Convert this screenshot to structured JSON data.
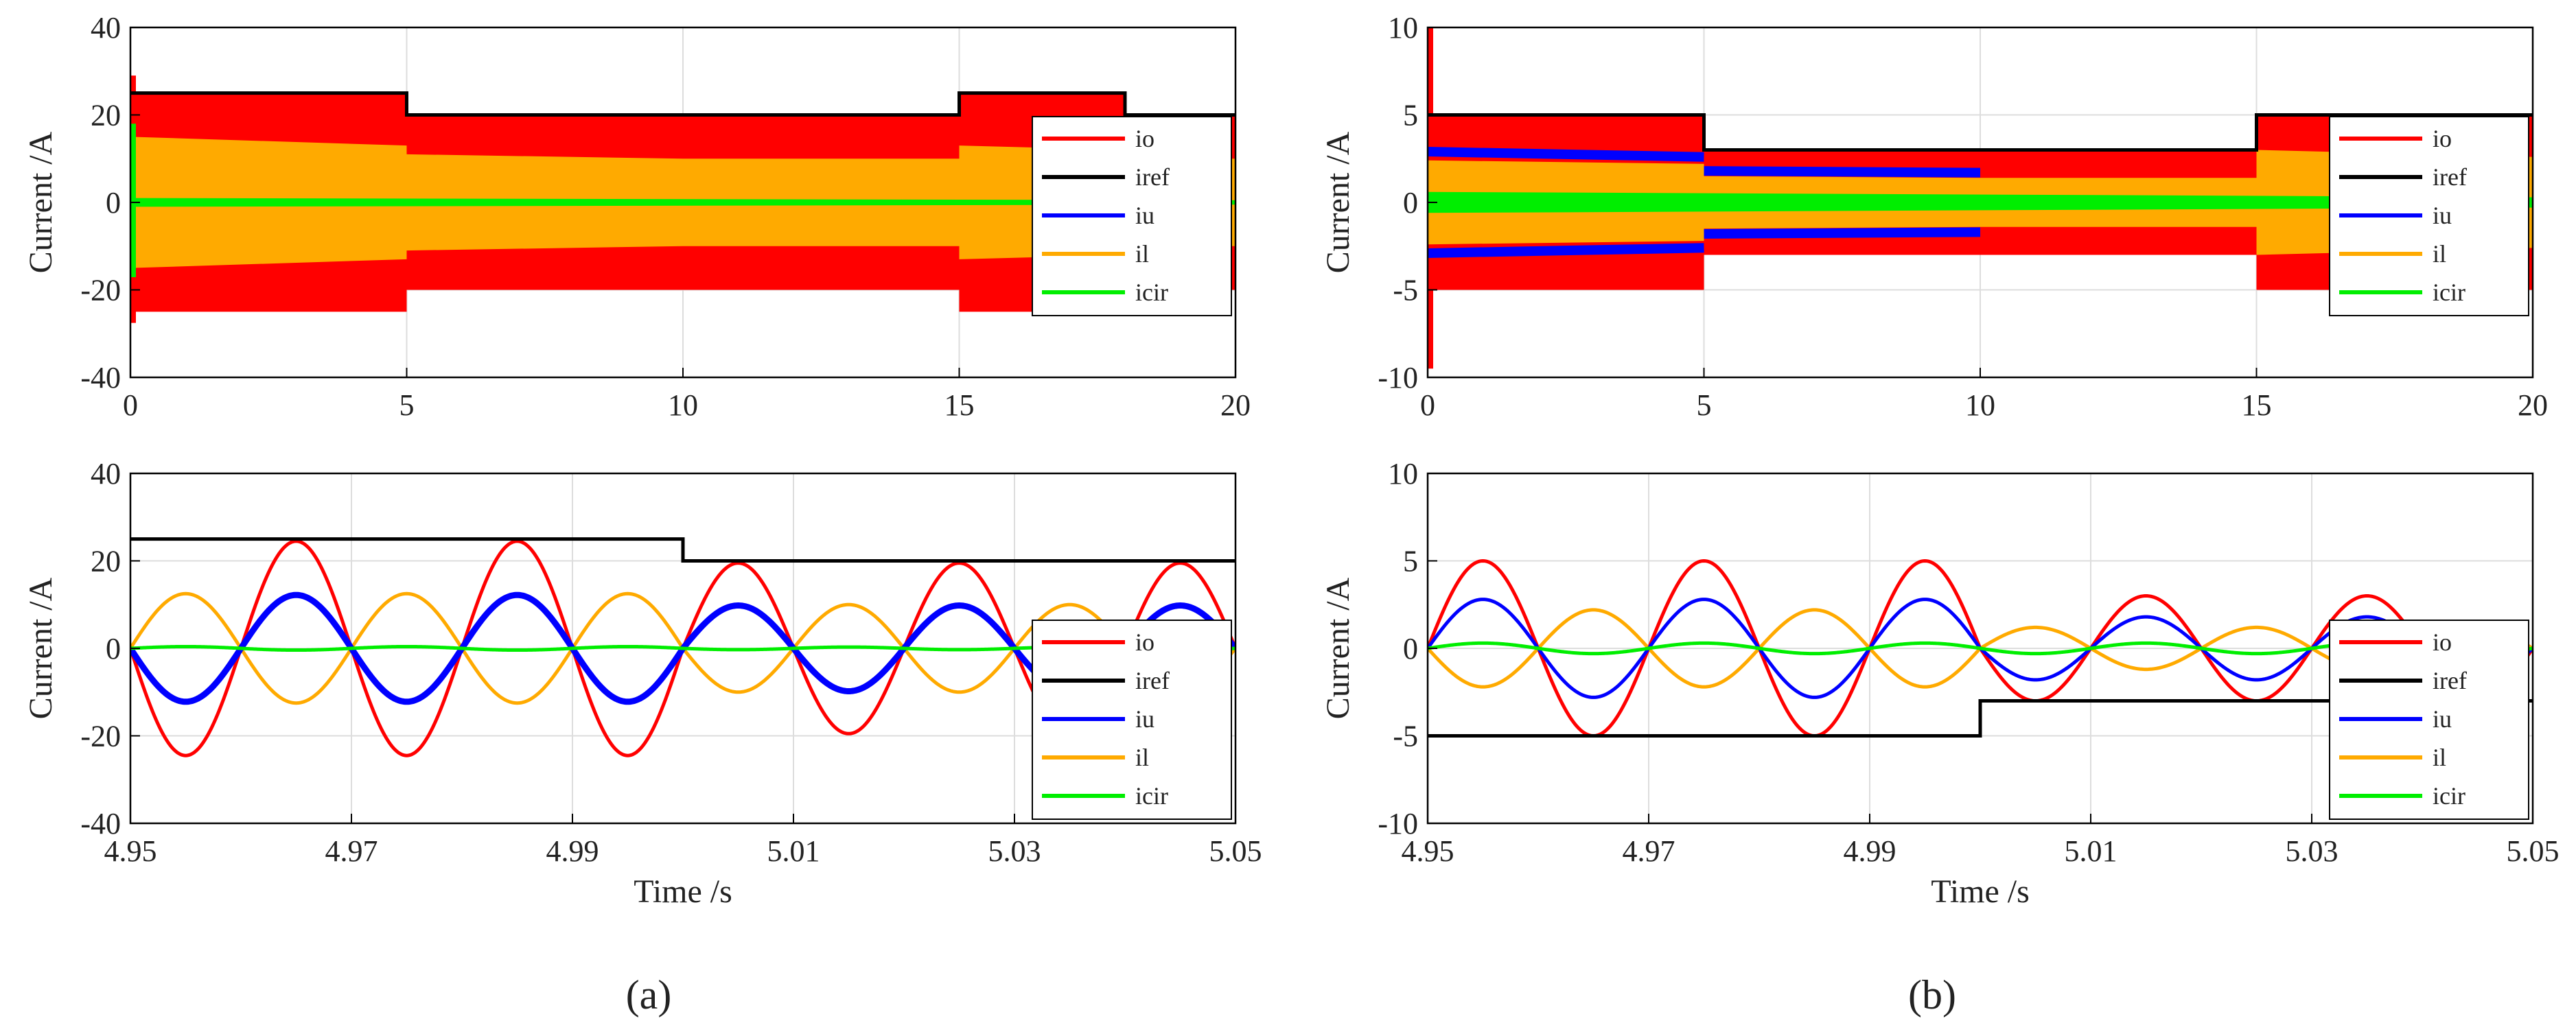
{
  "colors": {
    "io": "#ff0000",
    "iref": "#000000",
    "iu": "#0000ff",
    "il": "#ffaa00",
    "icir": "#00ee00",
    "grid": "#dddddd",
    "frame": "#000000"
  },
  "captions": {
    "a": "(a)",
    "b": "(b)"
  },
  "chart_data": [
    {
      "id": "a-top",
      "type": "line",
      "title": "",
      "xlabel": "",
      "ylabel": "Current /A",
      "xlim": [
        0,
        20
      ],
      "ylim": [
        -40,
        40
      ],
      "xticks": [
        0,
        5,
        10,
        15,
        20
      ],
      "yticks": [
        -40,
        -20,
        0,
        20,
        40
      ],
      "xtick_labels": [
        "0",
        "5",
        "10",
        "15",
        "20"
      ],
      "ytick_labels": [
        "-40",
        "-20",
        "0",
        "20",
        "40"
      ],
      "legend": [
        "io",
        "iref",
        "iu",
        "il",
        "icir"
      ],
      "legend_position": "right-middle",
      "series": [
        {
          "name": "iref",
          "style": "step",
          "segments": [
            {
              "x0": 0,
              "x1": 5,
              "y": 25
            },
            {
              "x0": 5,
              "x1": 10,
              "y": 20
            },
            {
              "x0": 10,
              "x1": 15,
              "y": 20
            },
            {
              "x0": 15,
              "x1": 18,
              "y": 25
            },
            {
              "x0": 18,
              "x1": 20,
              "y": 20
            }
          ]
        },
        {
          "name": "io",
          "style": "band",
          "segments": [
            {
              "x0": 0,
              "x1": 5,
              "amp": 25
            },
            {
              "x0": 5,
              "x1": 10,
              "amp": 20
            },
            {
              "x0": 10,
              "x1": 15,
              "amp": 20
            },
            {
              "x0": 15,
              "x1": 18,
              "amp": 25
            },
            {
              "x0": 18,
              "x1": 20,
              "amp": 20
            }
          ],
          "transient_peak": 29
        },
        {
          "name": "il",
          "style": "band",
          "segments": [
            {
              "x0": 0,
              "x1": 5,
              "amp0": 15,
              "amp1": 13
            },
            {
              "x0": 5,
              "x1": 10,
              "amp0": 11,
              "amp1": 10
            },
            {
              "x0": 10,
              "x1": 15,
              "amp0": 10,
              "amp1": 10
            },
            {
              "x0": 15,
              "x1": 18,
              "amp0": 13,
              "amp1": 12
            },
            {
              "x0": 18,
              "x1": 20,
              "amp0": 10,
              "amp1": 10
            }
          ]
        },
        {
          "name": "icir",
          "style": "band",
          "segments": [
            {
              "x0": 0,
              "x1": 20,
              "amp0": 1,
              "amp1": 0.5
            }
          ],
          "transient_peak": 18
        }
      ]
    },
    {
      "id": "a-bottom",
      "type": "line",
      "title": "",
      "xlabel": "Time /s",
      "ylabel": "Current /A",
      "xlim": [
        4.95,
        5.05
      ],
      "ylim": [
        -40,
        40
      ],
      "xticks": [
        4.95,
        4.97,
        4.99,
        5.01,
        5.03,
        5.05
      ],
      "yticks": [
        -40,
        -20,
        0,
        20,
        40
      ],
      "xtick_labels": [
        "4.95",
        "4.97",
        "4.99",
        "5.01",
        "5.03",
        "5.05"
      ],
      "ytick_labels": [
        "-40",
        "-20",
        "0",
        "20",
        "40"
      ],
      "legend": [
        "io",
        "iref",
        "iu",
        "il",
        "icir"
      ],
      "legend_position": "lower-right",
      "frequency_hz": 50,
      "step_time": 5.0,
      "series": [
        {
          "name": "iref",
          "style": "step",
          "segments": [
            {
              "x0": 4.95,
              "x1": 5.0,
              "y": 25
            },
            {
              "x0": 5.0,
              "x1": 5.05,
              "y": 20
            }
          ]
        },
        {
          "name": "io",
          "style": "sine",
          "amp_before": 24.5,
          "amp_after": 19.5,
          "sign": -1
        },
        {
          "name": "iu",
          "style": "sine",
          "amp_before": 12.2,
          "amp_after": 9.8,
          "sign": -1,
          "width": 2
        },
        {
          "name": "il",
          "style": "sine",
          "amp_before": 12.5,
          "amp_after": 10,
          "sign": 1
        },
        {
          "name": "icir",
          "style": "sine",
          "amp_before": 0.4,
          "amp_after": 0.3,
          "sign": 1
        }
      ]
    },
    {
      "id": "b-top",
      "type": "line",
      "title": "",
      "xlabel": "",
      "ylabel": "Current /A",
      "xlim": [
        0,
        20
      ],
      "ylim": [
        -10,
        10
      ],
      "xticks": [
        0,
        5,
        10,
        15,
        20
      ],
      "yticks": [
        -10,
        -5,
        0,
        5,
        10
      ],
      "xtick_labels": [
        "0",
        "5",
        "10",
        "15",
        "20"
      ],
      "ytick_labels": [
        "-10",
        "-5",
        "0",
        "5",
        "10"
      ],
      "legend": [
        "io",
        "iref",
        "iu",
        "il",
        "icir"
      ],
      "legend_position": "right-middle",
      "series": [
        {
          "name": "iref",
          "style": "step",
          "segments": [
            {
              "x0": 0,
              "x1": 5,
              "y": 5
            },
            {
              "x0": 5,
              "x1": 10,
              "y": 3
            },
            {
              "x0": 10,
              "x1": 15,
              "y": 3
            },
            {
              "x0": 15,
              "x1": 20,
              "y": 5
            }
          ]
        },
        {
          "name": "io",
          "style": "band",
          "segments": [
            {
              "x0": 0,
              "x1": 5,
              "amp": 5
            },
            {
              "x0": 5,
              "x1": 10,
              "amp": 3
            },
            {
              "x0": 10,
              "x1": 15,
              "amp": 3
            },
            {
              "x0": 15,
              "x1": 20,
              "amp": 5
            }
          ],
          "transient_peak": 10
        },
        {
          "name": "iu",
          "style": "edge",
          "segments": [
            {
              "x0": 0,
              "x1": 5,
              "amp0": 2.9,
              "amp1": 2.6
            },
            {
              "x0": 5,
              "x1": 10,
              "amp0": 1.8,
              "amp1": 1.7
            }
          ]
        },
        {
          "name": "il",
          "style": "band",
          "segments": [
            {
              "x0": 0,
              "x1": 5,
              "amp0": 2.4,
              "amp1": 2.2
            },
            {
              "x0": 5,
              "x1": 10,
              "amp0": 1.5,
              "amp1": 1.4
            },
            {
              "x0": 10,
              "x1": 15,
              "amp0": 1.4,
              "amp1": 1.4
            },
            {
              "x0": 15,
              "x1": 20,
              "amp0": 3,
              "amp1": 2.6
            }
          ]
        },
        {
          "name": "icir",
          "style": "band",
          "segments": [
            {
              "x0": 0,
              "x1": 20,
              "amp0": 0.6,
              "amp1": 0.3
            }
          ]
        }
      ]
    },
    {
      "id": "b-bottom",
      "type": "line",
      "title": "",
      "xlabel": "Time /s",
      "ylabel": "Current /A",
      "xlim": [
        4.95,
        5.05
      ],
      "ylim": [
        -10,
        10
      ],
      "xticks": [
        4.95,
        4.97,
        4.99,
        5.01,
        5.03,
        5.05
      ],
      "yticks": [
        -10,
        -5,
        0,
        5,
        10
      ],
      "xtick_labels": [
        "4.95",
        "4.97",
        "4.99",
        "5.01",
        "5.03",
        "5.05"
      ],
      "ytick_labels": [
        "-10",
        "-5",
        "0",
        "5",
        "10"
      ],
      "legend": [
        "io",
        "iref",
        "iu",
        "il",
        "icir"
      ],
      "legend_position": "lower-right",
      "frequency_hz": 50,
      "step_time": 5.0,
      "series": [
        {
          "name": "iref",
          "style": "step",
          "segments": [
            {
              "x0": 4.95,
              "x1": 5.0,
              "y": -5
            },
            {
              "x0": 5.0,
              "x1": 5.05,
              "y": -3
            }
          ]
        },
        {
          "name": "io",
          "style": "sine",
          "amp_before": 5,
          "amp_after": 3,
          "sign": 1
        },
        {
          "name": "iu",
          "style": "sine",
          "amp_before": 2.8,
          "amp_after": 1.8,
          "sign": 1
        },
        {
          "name": "il",
          "style": "sine",
          "amp_before": 2.2,
          "amp_after": 1.2,
          "sign": -1
        },
        {
          "name": "icir",
          "style": "sine",
          "amp_before": 0.3,
          "amp_after": 0.3,
          "sign": 1
        }
      ]
    }
  ]
}
